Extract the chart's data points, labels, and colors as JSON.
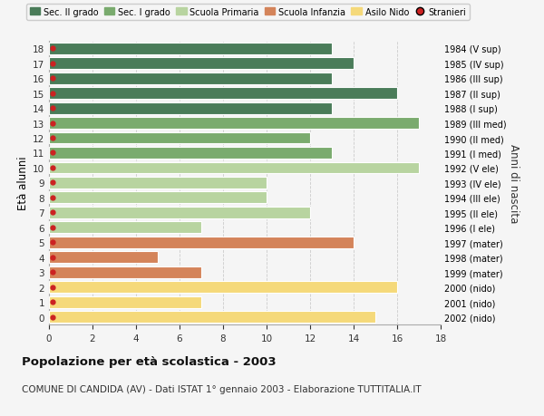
{
  "ages": [
    18,
    17,
    16,
    15,
    14,
    13,
    12,
    11,
    10,
    9,
    8,
    7,
    6,
    5,
    4,
    3,
    2,
    1,
    0
  ],
  "years": [
    "1984 (V sup)",
    "1985 (IV sup)",
    "1986 (III sup)",
    "1987 (II sup)",
    "1988 (I sup)",
    "1989 (III med)",
    "1990 (II med)",
    "1991 (I med)",
    "1992 (V ele)",
    "1993 (IV ele)",
    "1994 (III ele)",
    "1995 (II ele)",
    "1996 (I ele)",
    "1997 (mater)",
    "1998 (mater)",
    "1999 (mater)",
    "2000 (nido)",
    "2001 (nido)",
    "2002 (nido)"
  ],
  "values": [
    13,
    14,
    13,
    16,
    13,
    17,
    12,
    13,
    17,
    10,
    10,
    12,
    7,
    14,
    5,
    7,
    16,
    7,
    15
  ],
  "colors": [
    "#4a7c59",
    "#4a7c59",
    "#4a7c59",
    "#4a7c59",
    "#4a7c59",
    "#7aab6e",
    "#7aab6e",
    "#7aab6e",
    "#b8d4a0",
    "#b8d4a0",
    "#b8d4a0",
    "#b8d4a0",
    "#b8d4a0",
    "#d4845a",
    "#d4845a",
    "#d4845a",
    "#f5d97a",
    "#f5d97a",
    "#f5d97a"
  ],
  "stranieri_color": "#cc2222",
  "legend_labels": [
    "Sec. II grado",
    "Sec. I grado",
    "Scuola Primaria",
    "Scuola Infanzia",
    "Asilo Nido",
    "Stranieri"
  ],
  "legend_colors": [
    "#4a7c59",
    "#7aab6e",
    "#b8d4a0",
    "#d4845a",
    "#f5d97a",
    "#cc2222"
  ],
  "title_bold": "Popolazione per età scolastica - 2003",
  "subtitle": "COMUNE DI CANDIDA (AV) - Dati ISTAT 1° gennaio 2003 - Elaborazione TUTTITALIA.IT",
  "ylabel": "Età alunni",
  "ylabel_right": "Anni di nascita",
  "xlim": [
    0,
    18
  ],
  "xticks": [
    0,
    2,
    4,
    6,
    8,
    10,
    12,
    14,
    16,
    18
  ],
  "bg_color": "#f5f5f5",
  "grid_color": "#cccccc"
}
